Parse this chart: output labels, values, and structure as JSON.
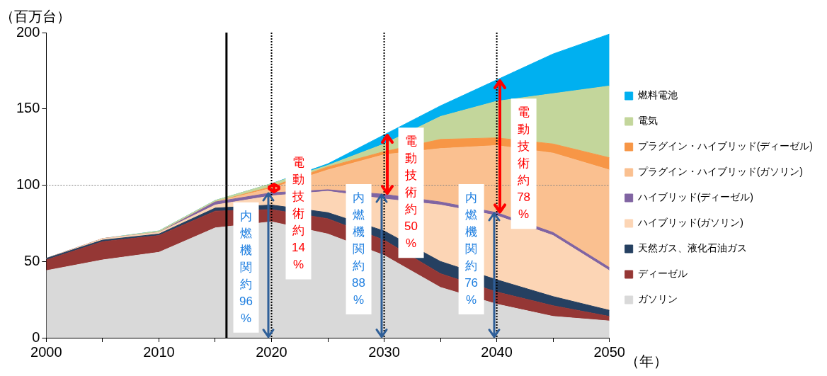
{
  "chart_data": {
    "type": "area",
    "stacked": true,
    "xlabel": "（年）",
    "ylabel": "（百万台）",
    "x": [
      2000,
      2005,
      2010,
      2015,
      2020,
      2025,
      2030,
      2035,
      2040,
      2045,
      2050
    ],
    "xlim": [
      2000,
      2050
    ],
    "xticks": [
      2000,
      {
        "value": 2005,
        "label": null
      },
      2010,
      {
        "value": 2015,
        "label": null
      },
      2020,
      {
        "value": 2025,
        "label": null
      },
      2030,
      {
        "value": 2035,
        "label": null
      },
      2040,
      {
        "value": 2045,
        "label": null
      },
      2050
    ],
    "ylim": [
      0,
      200
    ],
    "yticks": [
      0,
      50,
      100,
      150,
      200
    ],
    "grid": false,
    "legend": "right",
    "series": [
      {
        "name": "ガソリン",
        "color": "#d9d9d9",
        "values": [
          44,
          51,
          56,
          72,
          76,
          68,
          54,
          33,
          22,
          14,
          11
        ]
      },
      {
        "name": "ディーゼル",
        "color": "#953735",
        "values": [
          7,
          12,
          11,
          11,
          8,
          10,
          10,
          9,
          8,
          7,
          3
        ]
      },
      {
        "name": "天然ガス、液化石油ガス",
        "color": "#254061",
        "values": [
          1,
          1,
          1,
          2,
          3,
          4,
          6,
          8,
          8,
          6,
          4
        ]
      },
      {
        "name": "ハイブリッド(ガソリン)",
        "color": "#fcd5b5",
        "values": [
          0,
          1,
          1,
          2,
          6,
          14,
          21,
          37,
          42,
          40,
          26
        ]
      },
      {
        "name": "ハイブリッド(ディーゼル)",
        "color": "#8064a2",
        "values": [
          0,
          0,
          0,
          2,
          2,
          1,
          3,
          2,
          2,
          2,
          2
        ]
      },
      {
        "name": "プラグイン・ハイブリッド(ガソリン)",
        "color": "#fac090",
        "values": [
          0,
          0,
          0,
          0,
          3,
          13,
          26,
          35,
          44,
          52,
          64
        ]
      },
      {
        "name": "プラグイン・ハイブリッド(ディーゼル)",
        "color": "#f79646",
        "values": [
          0,
          0,
          0,
          0,
          1,
          2,
          2,
          6,
          5,
          6,
          8
        ]
      },
      {
        "name": "電気",
        "color": "#c3d69b",
        "values": [
          0,
          0,
          1,
          1,
          2,
          1,
          5,
          15,
          24,
          33,
          47
        ]
      },
      {
        "name": "燃料電池",
        "color": "#00b0f0",
        "values": [
          0,
          0,
          0,
          0,
          0,
          1,
          6,
          7,
          14,
          26,
          34
        ]
      }
    ],
    "ref_lines": [
      {
        "axis": "x",
        "value": 2016,
        "color": "#000000",
        "line_style": "solid"
      },
      {
        "axis": "x",
        "value": 2020,
        "color": "#000000",
        "line_style": "dotted"
      },
      {
        "axis": "x",
        "value": 2030,
        "color": "#000000",
        "line_style": "dotted"
      },
      {
        "axis": "x",
        "value": 2040,
        "color": "#000000",
        "line_style": "dotted"
      },
      {
        "axis": "y",
        "value": 100,
        "color": "#808080",
        "line_style": "dotted"
      }
    ],
    "annotations": [
      {
        "text": "内燃機関約96%",
        "x": 2020,
        "y": 46
      },
      {
        "text": "電動技術約14%",
        "x": 2020,
        "y": 81
      },
      {
        "text": "内燃機関約88%",
        "x": 2030,
        "y": 58
      },
      {
        "text": "電動技術約50%",
        "x": 2030,
        "y": 95
      },
      {
        "text": "内燃機関約76%",
        "x": 2040,
        "y": 58
      },
      {
        "text": "電動技術約78%",
        "x": 2040,
        "y": 114
      }
    ]
  }
}
